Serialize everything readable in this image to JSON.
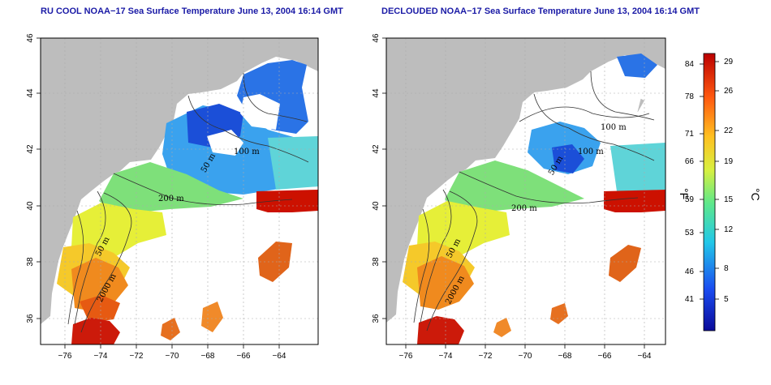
{
  "titles": {
    "left": "RU COOL NOAA−17 Sea Surface Temperature June 13, 2004 16:14 GMT",
    "right": "DECLOUDED NOAA−17 Sea Surface Temperature June 13, 2004 16:14 GMT"
  },
  "axes": {
    "x_ticks": [
      "−76",
      "−74",
      "−72",
      "−70",
      "−68",
      "−66",
      "−64"
    ],
    "y_ticks": [
      "36",
      "38",
      "40",
      "42",
      "44",
      "46"
    ]
  },
  "contour_labels": {
    "left": [
      "100 m",
      "50 m",
      "200 m",
      "50 m",
      "2000 m"
    ],
    "right": [
      "100 m",
      "100 m",
      "50 m",
      "200 m",
      "50 m",
      "2000 m"
    ]
  },
  "colorbar": {
    "fahrenheit_ticks": [
      "84",
      "78",
      "71",
      "66",
      "59",
      "53",
      "46",
      "41"
    ],
    "celsius_ticks": [
      "29",
      "26",
      "22",
      "19",
      "15",
      "12",
      "8",
      "5"
    ],
    "f_unit": "°F",
    "c_unit": "°C"
  },
  "colors": {
    "land": "#bdbdbd",
    "title": "#1a1aa6",
    "cold": "#0a2aa0",
    "warm": "#cc1100"
  }
}
